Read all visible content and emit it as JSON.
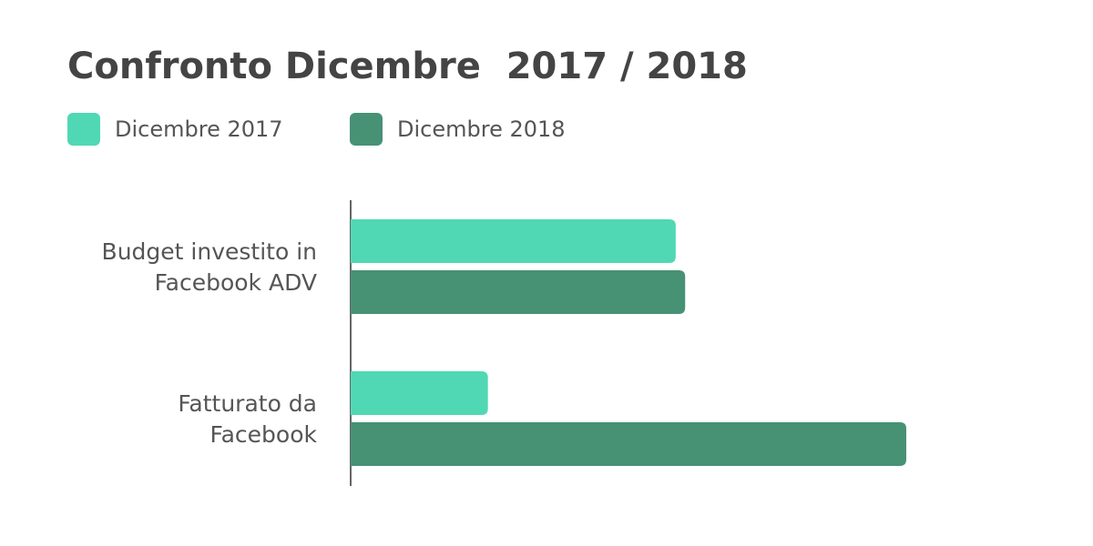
{
  "chart_data": {
    "type": "bar",
    "orientation": "horizontal",
    "title": "Confronto Dicembre  2017 / 2018",
    "categories": [
      [
        "Budget investito in",
        "Facebook ADV"
      ],
      [
        "Fatturato da",
        "Facebook"
      ]
    ],
    "series": [
      {
        "name": "Dicembre 2017",
        "color": "#50d8b4",
        "values": [
          58.5,
          24.7
        ]
      },
      {
        "name": "Dicembre 2018",
        "color": "#479175",
        "values": [
          60.2,
          100
        ]
      }
    ],
    "xlim": [
      0,
      100
    ],
    "grid": false,
    "legend_position": "top-left"
  }
}
